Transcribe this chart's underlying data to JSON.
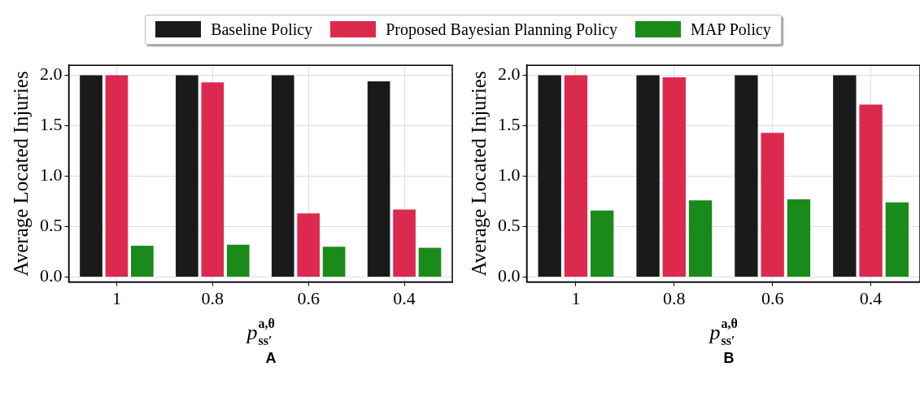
{
  "chart_data": [
    {
      "type": "bar",
      "annotations": [
        "A"
      ],
      "xlabel": "p$_{ss′}$$^{a,θ}$",
      "ylabel": "Average Located Injuries",
      "categories": [
        "1",
        "0.8",
        "0.6",
        "0.4"
      ],
      "ylim": [
        -0.05,
        2.1
      ],
      "yticks": [
        {
          "value": 0,
          "label": "0.0"
        },
        {
          "value": 0.5,
          "label": "0.5"
        },
        {
          "value": 1,
          "label": "1.0"
        },
        {
          "value": 1.5,
          "label": "1.5"
        },
        {
          "value": 2,
          "label": "2.0"
        }
      ],
      "grid": true,
      "legend": "top",
      "series": [
        {
          "name": "Baseline Policy",
          "color": "#1a1a1a",
          "values": [
            2,
            2,
            2,
            1.94
          ]
        },
        {
          "name": "Proposed Bayesian Planning Policy",
          "color": "#dc2a4f",
          "values": [
            2,
            1.93,
            0.63,
            0.67
          ]
        },
        {
          "name": "MAP Policy",
          "color": "#1a8a1a",
          "values": [
            0.31,
            0.32,
            0.3,
            0.29
          ]
        }
      ]
    },
    {
      "type": "bar",
      "annotations": [
        "B"
      ],
      "xlabel": "p$_{ss′}$$^{a,θ}$",
      "ylabel": "Average Located Injuries",
      "categories": [
        "1",
        "0.8",
        "0.6",
        "0.4"
      ],
      "ylim": [
        -0.05,
        2.1
      ],
      "yticks": [
        {
          "value": 0,
          "label": "0.0"
        },
        {
          "value": 0.5,
          "label": "0.5"
        },
        {
          "value": 1,
          "label": "1.0"
        },
        {
          "value": 1.5,
          "label": "1.5"
        },
        {
          "value": 2,
          "label": "2.0"
        }
      ],
      "grid": true,
      "legend": "top",
      "series": [
        {
          "name": "Baseline Policy",
          "color": "#1a1a1a",
          "values": [
            2,
            2,
            2,
            2
          ]
        },
        {
          "name": "Proposed Bayesian Planning Policy",
          "color": "#dc2a4f",
          "values": [
            2,
            1.98,
            1.43,
            1.71
          ]
        },
        {
          "name": "MAP Policy",
          "color": "#1a8a1a",
          "values": [
            0.66,
            0.76,
            0.77,
            0.74
          ]
        }
      ]
    }
  ]
}
